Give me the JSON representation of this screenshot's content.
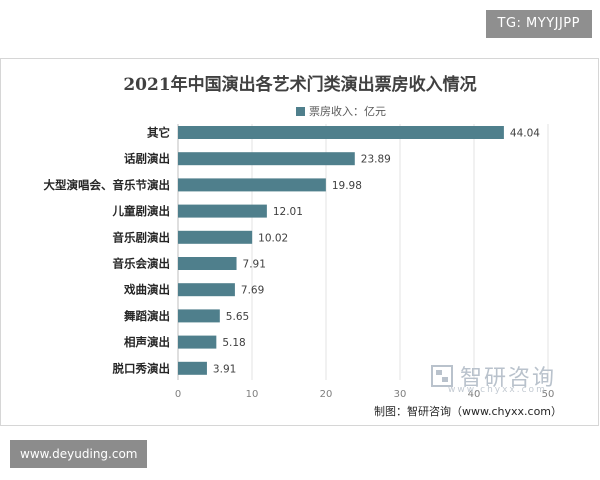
{
  "overlay": {
    "tg_label": "TG: MYYJJPP",
    "site_label": "www.deyuding.com"
  },
  "chart_data": {
    "type": "bar",
    "orientation": "horizontal",
    "title": "2021年中国演出各艺术门类演出票房收入情况",
    "categories": [
      "其它",
      "话剧演出",
      "大型演唱会、音乐节演出",
      "儿童剧演出",
      "音乐剧演出",
      "音乐会演出",
      "戏曲演出",
      "舞蹈演出",
      "相声演出",
      "脱口秀演出"
    ],
    "series": [
      {
        "name": "票房收入：亿元",
        "values": [
          44.04,
          23.89,
          19.98,
          12.01,
          10.02,
          7.91,
          7.69,
          5.65,
          5.18,
          3.91
        ]
      }
    ],
    "value_labels": [
      "44.04",
      "23.89",
      "19.98",
      "12.01",
      "10.02",
      "7.91",
      "7.69",
      "5.65",
      "5.18",
      "3.91"
    ],
    "xlim": [
      0,
      50
    ],
    "xticks": [
      0,
      10,
      20,
      30,
      40,
      50
    ],
    "legend_position": "top",
    "grid": "vertical",
    "bar_color": "#4f7f8c"
  },
  "watermark": {
    "brand": "智研咨询",
    "url": "www.chyxx.com"
  },
  "source_note": "制图：智研咨询（www.chyxx.com）"
}
